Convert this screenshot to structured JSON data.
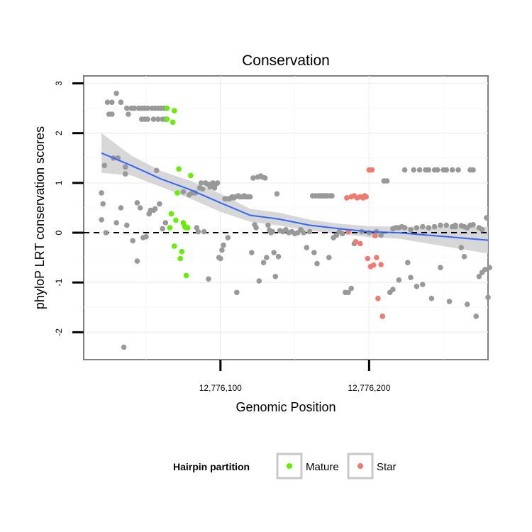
{
  "chart_data": {
    "type": "scatter",
    "title": "Conservation",
    "xlabel": "Genomic Position",
    "ylabel": "phyloP LRT conservation scores",
    "xlim": [
      12776008,
      12776280
    ],
    "ylim": [
      -2.55,
      3.15
    ],
    "x_ticks": [
      {
        "value": 12776100,
        "label": "12,776,100"
      },
      {
        "value": 12776200,
        "label": "12,776,200"
      }
    ],
    "y_ticks": [
      {
        "value": -2,
        "label": "-2"
      },
      {
        "value": -1,
        "label": "-1"
      },
      {
        "value": 0,
        "label": "0"
      },
      {
        "value": 1,
        "label": "1"
      },
      {
        "value": 2,
        "label": "2"
      },
      {
        "value": 3,
        "label": "3"
      }
    ],
    "reference_line": {
      "y": 0,
      "style": "dashed"
    },
    "grid": true,
    "legend": {
      "title": "Hairpin partition",
      "position": "bottom",
      "entries": [
        {
          "label": "Mature",
          "color": "#66ee00"
        },
        {
          "label": "Star",
          "color": "#f07a70"
        }
      ]
    },
    "colors": {
      "other": "#999999",
      "mature": "#66ee00",
      "star": "#f07a70",
      "smooth": "#3366ff",
      "band": "#d3d3d3"
    },
    "series": [
      {
        "name": "Other",
        "points": [
          [
            12776020,
            0.8
          ],
          [
            12776020,
            0.26
          ],
          [
            12776021,
            0.58
          ],
          [
            12776022,
            1.35
          ],
          [
            12776023,
            0.0
          ],
          [
            12776024,
            2.62
          ],
          [
            12776025,
            2.38
          ],
          [
            12776027,
            2.62
          ],
          [
            12776027,
            2.38
          ],
          [
            12776028,
            1.5
          ],
          [
            12776030,
            0.2
          ],
          [
            12776030,
            2.8
          ],
          [
            12776031,
            1.5
          ],
          [
            12776033,
            2.62
          ],
          [
            12776033,
            0.5
          ],
          [
            12776035,
            -2.3
          ],
          [
            12776036,
            1.32
          ],
          [
            12776036,
            1.18
          ],
          [
            12776037,
            0.15
          ],
          [
            12776037,
            2.5
          ],
          [
            12776038,
            2.38
          ],
          [
            12776040,
            2.5
          ],
          [
            12776041,
            -0.16
          ],
          [
            12776042,
            2.5
          ],
          [
            12776044,
            -0.57
          ],
          [
            12776044,
            0.6
          ],
          [
            12776045,
            2.5
          ],
          [
            12776046,
            0.5
          ],
          [
            12776047,
            2.5
          ],
          [
            12776047,
            2.28
          ],
          [
            12776048,
            -0.1
          ],
          [
            12776049,
            2.5
          ],
          [
            12776049,
            2.28
          ],
          [
            12776050,
            -0.08
          ],
          [
            12776051,
            2.5
          ],
          [
            12776051,
            2.28
          ],
          [
            12776052,
            0.38
          ],
          [
            12776053,
            0.45
          ],
          [
            12776054,
            2.5
          ],
          [
            12776055,
            2.28
          ],
          [
            12776055,
            0.45
          ],
          [
            12776056,
            0.48
          ],
          [
            12776056,
            2.5
          ],
          [
            12776057,
            1.25
          ],
          [
            12776058,
            2.5
          ],
          [
            12776058,
            2.28
          ],
          [
            12776059,
            0.58
          ],
          [
            12776060,
            2.5
          ],
          [
            12776061,
            2.28
          ],
          [
            12776061,
            0.08
          ],
          [
            12776062,
            2.5
          ],
          [
            12776063,
            2.28
          ],
          [
            12776063,
            0.2
          ],
          [
            12776075,
            0.82
          ],
          [
            12776079,
            0.76
          ],
          [
            12776081,
            0.8
          ],
          [
            12776082,
            0.8
          ],
          [
            12776083,
            0.8
          ],
          [
            12776084,
            0.1
          ],
          [
            12776085,
            0.02
          ],
          [
            12776086,
            0.9
          ],
          [
            12776087,
            1.0
          ],
          [
            12776088,
            0.88
          ],
          [
            12776089,
            0.02
          ],
          [
            12776090,
            1.0
          ],
          [
            12776091,
            0.98
          ],
          [
            12776092,
            -0.93
          ],
          [
            12776093,
            0.92
          ],
          [
            12776094,
            0.98
          ],
          [
            12776095,
            1.0
          ],
          [
            12776096,
            0.9
          ],
          [
            12776097,
            0.98
          ],
          [
            12776098,
            1.0
          ],
          [
            12776099,
            -0.5
          ],
          [
            12776100,
            -0.52
          ],
          [
            12776101,
            -0.35
          ],
          [
            12776102,
            -0.25
          ],
          [
            12776103,
            0.68
          ],
          [
            12776104,
            0.68
          ],
          [
            12776105,
            -0.1
          ],
          [
            12776106,
            0.68
          ],
          [
            12776107,
            0.7
          ],
          [
            12776108,
            0.72
          ],
          [
            12776109,
            0.7
          ],
          [
            12776110,
            0.72
          ],
          [
            12776111,
            -1.2
          ],
          [
            12776112,
            0.74
          ],
          [
            12776113,
            0.72
          ],
          [
            12776114,
            0.72
          ],
          [
            12776115,
            0.72
          ],
          [
            12776116,
            0.74
          ],
          [
            12776117,
            0.72
          ],
          [
            12776118,
            0.72
          ],
          [
            12776119,
            0.72
          ],
          [
            12776120,
            0.72
          ],
          [
            12776121,
            -0.4
          ],
          [
            12776122,
            1.1
          ],
          [
            12776123,
            0.16
          ],
          [
            12776124,
            0.1
          ],
          [
            12776125,
            1.12
          ],
          [
            12776126,
            -0.97
          ],
          [
            12776127,
            1.14
          ],
          [
            12776128,
            1.12
          ],
          [
            12776129,
            -0.6
          ],
          [
            12776130,
            1.1
          ],
          [
            12776131,
            -0.5
          ],
          [
            12776132,
            0.15
          ],
          [
            12776133,
            0.05
          ],
          [
            12776134,
            0.0
          ],
          [
            12776135,
            0.02
          ],
          [
            12776136,
            -0.4
          ],
          [
            12776137,
            -0.88
          ],
          [
            12776138,
            0.78
          ],
          [
            12776139,
            -0.48
          ],
          [
            12776140,
            0.04
          ],
          [
            12776142,
            0.02
          ],
          [
            12776144,
            0.06
          ],
          [
            12776146,
            0.0
          ],
          [
            12776148,
            0.02
          ],
          [
            12776150,
            -0.02
          ],
          [
            12776152,
            0.0
          ],
          [
            12776154,
            0.06
          ],
          [
            12776156,
            0.0
          ],
          [
            12776158,
            -0.3
          ],
          [
            12776160,
            0.02
          ],
          [
            12776162,
            0.74
          ],
          [
            12776163,
            -0.4
          ],
          [
            12776164,
            0.74
          ],
          [
            12776165,
            -0.62
          ],
          [
            12776166,
            0.74
          ],
          [
            12776167,
            0.74
          ],
          [
            12776168,
            0.74
          ],
          [
            12776169,
            0.74
          ],
          [
            12776170,
            0.74
          ],
          [
            12776171,
            0.74
          ],
          [
            12776172,
            0.74
          ],
          [
            12776173,
            -0.5
          ],
          [
            12776174,
            0.74
          ],
          [
            12776175,
            0.74
          ],
          [
            12776176,
            -0.1
          ],
          [
            12776178,
            -0.05
          ],
          [
            12776180,
            0.02
          ],
          [
            12776182,
            -0.02
          ],
          [
            12776184,
            -1.2
          ],
          [
            12776186,
            -1.2
          ],
          [
            12776188,
            -1.12
          ],
          [
            12776190,
            -0.22
          ],
          [
            12776195,
            0.02
          ],
          [
            12776200,
            0.0
          ],
          [
            12776205,
            0.02
          ],
          [
            12776208,
            -0.05
          ],
          [
            12776210,
            1.04
          ],
          [
            12776212,
            1.04
          ],
          [
            12776214,
            -1.2
          ],
          [
            12776216,
            -1.14
          ],
          [
            12776218,
            0.1
          ],
          [
            12776220,
            -0.95
          ],
          [
            12776222,
            0.12
          ],
          [
            12776224,
            1.26
          ],
          [
            12776226,
            -0.6
          ],
          [
            12776228,
            -0.9
          ],
          [
            12776230,
            1.26
          ],
          [
            12776232,
            -1.08
          ],
          [
            12776234,
            1.26
          ],
          [
            12776236,
            -1.04
          ],
          [
            12776238,
            1.26
          ],
          [
            12776240,
            1.26
          ],
          [
            12776242,
            -1.32
          ],
          [
            12776244,
            1.26
          ],
          [
            12776246,
            1.26
          ],
          [
            12776248,
            -0.7
          ],
          [
            12776250,
            1.26
          ],
          [
            12776252,
            1.26
          ],
          [
            12776254,
            -1.38
          ],
          [
            12776256,
            1.26
          ],
          [
            12776258,
            0.15
          ],
          [
            12776260,
            1.26
          ],
          [
            12776262,
            -0.3
          ],
          [
            12776264,
            -0.48
          ],
          [
            12776266,
            -1.44
          ],
          [
            12776268,
            1.26
          ],
          [
            12776270,
            1.26
          ],
          [
            12776272,
            -1.68
          ],
          [
            12776274,
            -0.88
          ],
          [
            12776276,
            -0.8
          ],
          [
            12776278,
            -0.74
          ],
          [
            12776279,
            0.3
          ],
          [
            12776280,
            -1.3
          ],
          [
            12776281,
            -0.7
          ],
          [
            12776258,
            0.12
          ],
          [
            12776262,
            0.14
          ],
          [
            12776266,
            0.1
          ],
          [
            12776270,
            0.16
          ],
          [
            12776274,
            0.1
          ],
          [
            12776276,
            0.06
          ],
          [
            12776268,
            0.15
          ],
          [
            12776264,
            0.12
          ],
          [
            12776256,
            0.12
          ],
          [
            12776252,
            0.15
          ],
          [
            12776248,
            0.15
          ],
          [
            12776244,
            0.12
          ],
          [
            12776240,
            0.1
          ],
          [
            12776236,
            0.12
          ],
          [
            12776232,
            0.1
          ],
          [
            12776228,
            0.06
          ],
          [
            12776224,
            0.1
          ],
          [
            12776220,
            0.1
          ],
          [
            12776216,
            0.08
          ]
        ]
      },
      {
        "name": "Mature",
        "points": [
          [
            12776064,
            2.5
          ],
          [
            12776064,
            2.28
          ],
          [
            12776066,
            0.1
          ],
          [
            12776067,
            0.38
          ],
          [
            12776068,
            2.22
          ],
          [
            12776069,
            2.45
          ],
          [
            12776069,
            -0.27
          ],
          [
            12776070,
            0.25
          ],
          [
            12776071,
            0.8
          ],
          [
            12776072,
            1.28
          ],
          [
            12776073,
            -0.52
          ],
          [
            12776074,
            -0.38
          ],
          [
            12776075,
            0.2
          ],
          [
            12776076,
            0.12
          ],
          [
            12776077,
            0.1
          ],
          [
            12776077,
            -0.86
          ],
          [
            12776078,
            0.1
          ],
          [
            12776080,
            1.15
          ]
        ]
      },
      {
        "name": "Star",
        "points": [
          [
            12776185,
            0.7
          ],
          [
            12776186,
            0.02
          ],
          [
            12776188,
            0.72
          ],
          [
            12776190,
            0.74
          ],
          [
            12776191,
            -0.18
          ],
          [
            12776192,
            0.7
          ],
          [
            12776194,
            0.72
          ],
          [
            12776196,
            0.7
          ],
          [
            12776197,
            0.74
          ],
          [
            12776198,
            0.72
          ],
          [
            12776199,
            -0.52
          ],
          [
            12776200,
            1.26
          ],
          [
            12776201,
            -0.68
          ],
          [
            12776202,
            1.26
          ],
          [
            12776203,
            -0.65
          ],
          [
            12776204,
            -0.06
          ],
          [
            12776205,
            -0.5
          ],
          [
            12776206,
            -1.32
          ],
          [
            12776208,
            -0.64
          ],
          [
            12776209,
            -1.68
          ],
          [
            12776196,
            0.72
          ],
          [
            12776194,
            -0.22
          ]
        ]
      }
    ],
    "smooth": {
      "x": [
        12776020,
        12776040,
        12776060,
        12776080,
        12776100,
        12776120,
        12776140,
        12776160,
        12776180,
        12776200,
        12776220,
        12776240,
        12776260,
        12776280
      ],
      "y": [
        1.6,
        1.35,
        1.08,
        0.86,
        0.6,
        0.35,
        0.27,
        0.15,
        0.08,
        0.02,
        0.0,
        -0.05,
        -0.1,
        -0.15
      ],
      "lower": [
        1.2,
        1.15,
        0.92,
        0.68,
        0.42,
        0.22,
        0.14,
        0.04,
        -0.02,
        -0.09,
        -0.12,
        -0.22,
        -0.32,
        -0.42
      ],
      "upper": [
        2.0,
        1.55,
        1.24,
        1.04,
        0.78,
        0.48,
        0.4,
        0.26,
        0.18,
        0.13,
        0.12,
        0.12,
        0.12,
        0.12
      ]
    }
  }
}
